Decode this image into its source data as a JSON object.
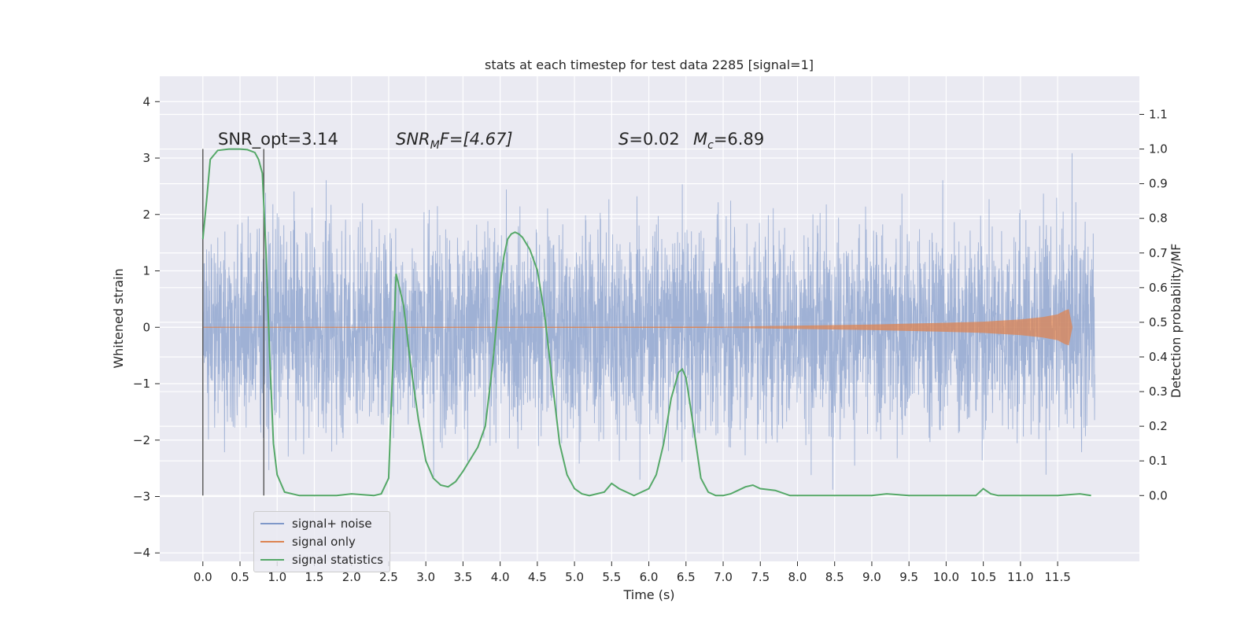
{
  "chart_data": {
    "type": "line",
    "title": "stats at each timestep for test data 2285 [signal=1]",
    "xlabel": "Time (s)",
    "ylabel_left": "Whitened strain",
    "ylabel_right": "Detection probability/MF",
    "xlim": [
      -0.58,
      12.6
    ],
    "ylim_left": [
      -4.15,
      4.45
    ],
    "ylim_right": [
      -0.19,
      1.21
    ],
    "xticks": [
      "0.0",
      "0.5",
      "1.0",
      "1.5",
      "2.0",
      "2.5",
      "3.0",
      "3.5",
      "4.0",
      "4.5",
      "5.0",
      "5.5",
      "6.0",
      "6.5",
      "7.0",
      "7.5",
      "8.0",
      "8.5",
      "9.0",
      "9.5",
      "10.0",
      "10.5",
      "11.0",
      "11.5"
    ],
    "yticks_left": [
      "4",
      "3",
      "2",
      "1",
      "0",
      "−1",
      "−2",
      "−3",
      "−4"
    ],
    "yticks_right": [
      "1.1",
      "1.0",
      "0.9",
      "0.8",
      "0.7",
      "0.6",
      "0.5",
      "0.4",
      "0.3",
      "0.2",
      "0.1",
      "0.0"
    ],
    "grid": true,
    "legend_position": "lower-left",
    "series": [
      {
        "name": "signal+ noise",
        "color": "#7f98c9",
        "description": "dense noisy strain, roughly within ±3",
        "x_range": [
          0.0,
          12.0
        ]
      },
      {
        "name": "signal only",
        "color": "#dd8452",
        "x": [
          0.0,
          7.0,
          8.0,
          9.0,
          10.0,
          10.5,
          11.0,
          11.3,
          11.5,
          11.6,
          11.65,
          11.7
        ],
        "envelope": [
          0.0,
          0.01,
          0.03,
          0.05,
          0.08,
          0.1,
          0.14,
          0.18,
          0.23,
          0.3,
          0.32,
          0.0
        ]
      },
      {
        "name": "signal statistics",
        "color": "#55a868",
        "axis": "right",
        "x": [
          0.0,
          0.05,
          0.1,
          0.2,
          0.35,
          0.5,
          0.6,
          0.7,
          0.75,
          0.8,
          0.85,
          0.9,
          0.95,
          1.0,
          1.1,
          1.3,
          1.8,
          2.0,
          2.3,
          2.4,
          2.5,
          2.55,
          2.6,
          2.7,
          2.8,
          2.9,
          3.0,
          3.1,
          3.2,
          3.3,
          3.4,
          3.5,
          3.7,
          3.8,
          3.9,
          4.0,
          4.05,
          4.1,
          4.15,
          4.2,
          4.25,
          4.3,
          4.4,
          4.5,
          4.6,
          4.7,
          4.8,
          4.9,
          5.0,
          5.1,
          5.2,
          5.3,
          5.4,
          5.5,
          5.6,
          5.8,
          6.0,
          6.1,
          6.2,
          6.3,
          6.4,
          6.45,
          6.5,
          6.6,
          6.7,
          6.8,
          6.9,
          7.0,
          7.1,
          7.2,
          7.3,
          7.4,
          7.5,
          7.7,
          7.9,
          8.3,
          9.0,
          9.2,
          9.5,
          10.0,
          10.4,
          10.5,
          10.6,
          10.7,
          11.0,
          11.5,
          11.8,
          11.95
        ],
        "y": [
          0.74,
          0.85,
          0.97,
          0.996,
          1.0,
          1.0,
          0.998,
          0.99,
          0.97,
          0.93,
          0.7,
          0.4,
          0.15,
          0.06,
          0.01,
          0.0,
          0.0,
          0.005,
          0.0,
          0.005,
          0.05,
          0.35,
          0.64,
          0.55,
          0.37,
          0.22,
          0.1,
          0.05,
          0.03,
          0.025,
          0.04,
          0.07,
          0.14,
          0.2,
          0.38,
          0.61,
          0.69,
          0.74,
          0.755,
          0.76,
          0.755,
          0.745,
          0.71,
          0.65,
          0.52,
          0.33,
          0.15,
          0.06,
          0.02,
          0.005,
          0.0,
          0.005,
          0.01,
          0.035,
          0.02,
          0.0,
          0.02,
          0.06,
          0.15,
          0.28,
          0.355,
          0.365,
          0.34,
          0.2,
          0.05,
          0.01,
          0.0,
          0.0,
          0.005,
          0.015,
          0.025,
          0.03,
          0.02,
          0.015,
          0.0,
          0.0,
          0.0,
          0.005,
          0.0,
          0.0,
          0.0,
          0.02,
          0.005,
          0.0,
          0.0,
          0.0,
          0.005,
          0.0
        ]
      }
    ],
    "vertical_lines": [
      0.0,
      0.82
    ],
    "annotations": [
      {
        "text": "SNR_opt=3.14",
        "x": 0.2
      },
      {
        "text": "SNR_M F=[4.67]",
        "x": 2.6
      },
      {
        "text": "S=0.02",
        "x": 5.6
      },
      {
        "text": "M_c=6.89",
        "x": 6.6
      }
    ]
  },
  "annotation_text": {
    "snr_opt": "SNR_opt=3.14",
    "snr_mf_base": "SNR",
    "snr_mf_sub": "M",
    "snr_mf_rest": "F=[4.67]",
    "s_stat": "S",
    "s_val": "=0.02",
    "mc_base": "M",
    "mc_sub": "c",
    "mc_val": "=6.89"
  },
  "legend": [
    {
      "label": "signal+ noise",
      "color": "#7f98c9"
    },
    {
      "label": "signal only",
      "color": "#dd8452"
    },
    {
      "label": "signal statistics",
      "color": "#55a868"
    }
  ]
}
